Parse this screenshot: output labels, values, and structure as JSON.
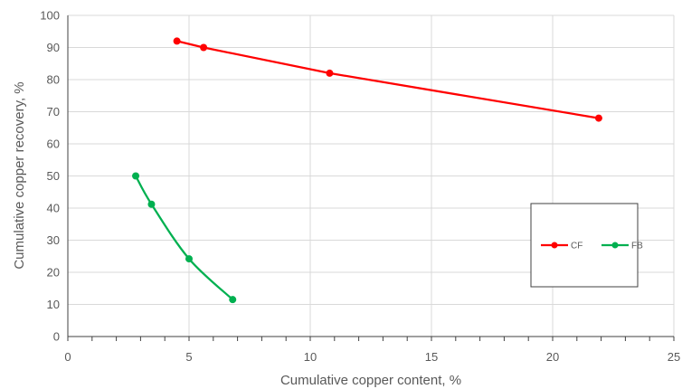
{
  "chart_data": {
    "type": "scatter",
    "title": "",
    "xlabel": "Cumulative copper content, %",
    "ylabel": "Cumulative copper recovery, %",
    "xlim": [
      0,
      25
    ],
    "ylim": [
      0,
      100
    ],
    "xticks": [
      0,
      5,
      10,
      15,
      20,
      25
    ],
    "yticks": [
      0,
      10,
      20,
      30,
      40,
      50,
      60,
      70,
      80,
      90,
      100
    ],
    "grid": true,
    "legend_position": "right",
    "series": [
      {
        "name": "CF",
        "color": "#ff0000",
        "points": [
          [
            4.5,
            92
          ],
          [
            5.6,
            90
          ],
          [
            10.8,
            82
          ],
          [
            21.9,
            68
          ]
        ],
        "smooth": false
      },
      {
        "name": "FB",
        "color": "#00b050",
        "points": [
          [
            2.8,
            50
          ],
          [
            3.45,
            41.2
          ],
          [
            5.0,
            24.2
          ],
          [
            6.8,
            11.5
          ]
        ],
        "smooth": true
      }
    ]
  }
}
